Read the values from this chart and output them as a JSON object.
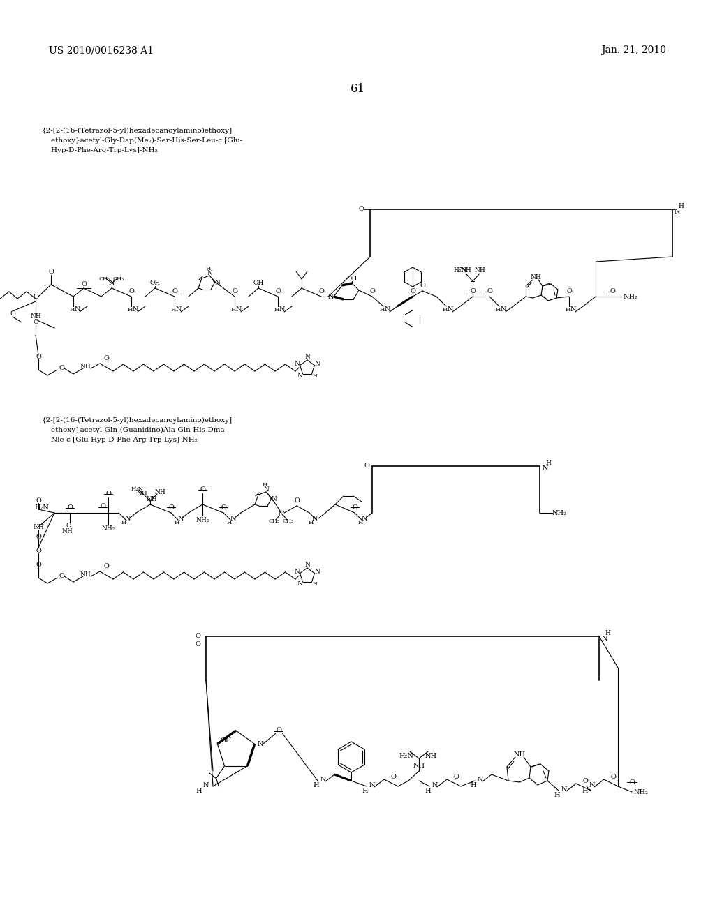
{
  "header_left": "US 2010/0016238 A1",
  "header_right": "Jan. 21, 2010",
  "page_num": "61",
  "label1_line1": "{2-[2-(16-(Tetrazol-5-yl)hexadecanoylamino)ethoxy]",
  "label1_line2": "    ethoxy}acetyl-Gly-Dap(Me₂)-Ser-His-Ser-Leu-c [Glu-",
  "label1_line3": "    Hyp-D-Phe-Arg-Trp-Lys]-NH₂",
  "label2_line1": "{2-[2-(16-(Tetrazol-5-yl)hexadecanoylamino)ethoxy]",
  "label2_line2": "    ethoxy}acetyl-Gln-(Guanidino)Ala-Gln-His-Dma-",
  "label2_line3": "    Nle-c [Glu-Hyp-D-Phe-Arg-Trp-Lys]-NH₂",
  "bg": "#ffffff",
  "fg": "#000000"
}
